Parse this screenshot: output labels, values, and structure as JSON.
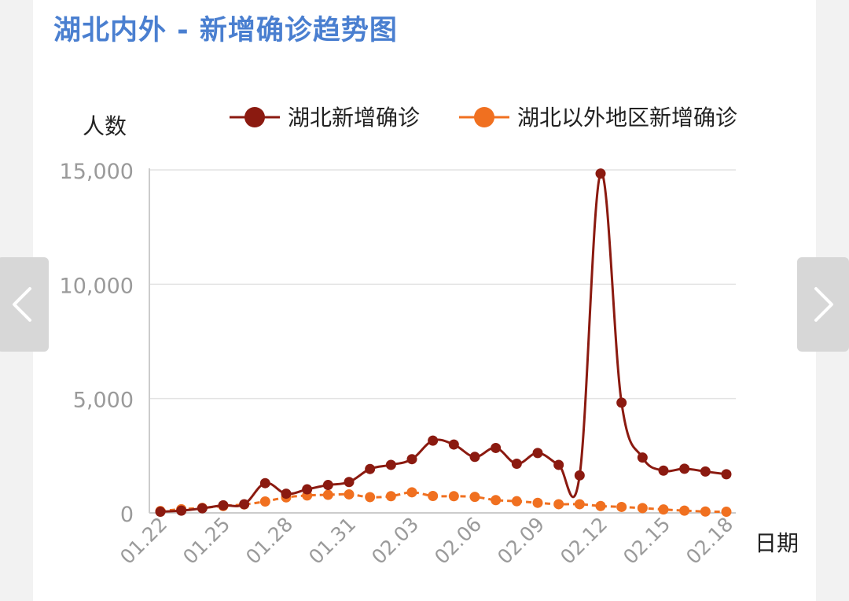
{
  "title": "湖北内外 - 新增确诊趋势图",
  "icons": {
    "prev": "chevron-left-icon",
    "next": "chevron-right-icon"
  },
  "chart_data": {
    "type": "line",
    "ylabel": "人数",
    "xlabel": "日期",
    "ylim": [
      0,
      15000
    ],
    "yticks": [
      0,
      5000,
      10000,
      15000
    ],
    "ytick_labels": [
      "0",
      "5,000",
      "10,000",
      "15,000"
    ],
    "grid": true,
    "legend": "top",
    "x": [
      "01.22",
      "01.23",
      "01.24",
      "01.25",
      "01.26",
      "01.27",
      "01.28",
      "01.29",
      "01.30",
      "01.31",
      "02.01",
      "02.02",
      "02.03",
      "02.04",
      "02.05",
      "02.06",
      "02.07",
      "02.08",
      "02.09",
      "02.10",
      "02.11",
      "02.12",
      "02.13",
      "02.14",
      "02.15",
      "02.16",
      "02.17",
      "02.18"
    ],
    "xtick_labels": [
      "01.22",
      "01.25",
      "01.28",
      "01.31",
      "02.03",
      "02.06",
      "02.09",
      "02.12",
      "02.15",
      "02.18"
    ],
    "series": [
      {
        "name": "湖北新增确诊",
        "color": "#8b1a10",
        "values": [
          50,
          100,
          200,
          330,
          380,
          1300,
          840,
          1030,
          1220,
          1350,
          1920,
          2100,
          2350,
          3160,
          2990,
          2450,
          2840,
          2150,
          2620,
          2100,
          1640,
          14840,
          4820,
          2420,
          1850,
          1930,
          1810,
          1690
        ]
      },
      {
        "name": "湖北以外地区新增确诊",
        "color": "#f07020",
        "values": [
          80,
          160,
          220,
          300,
          370,
          500,
          680,
          760,
          790,
          810,
          690,
          730,
          900,
          740,
          730,
          700,
          560,
          510,
          440,
          380,
          380,
          300,
          260,
          210,
          150,
          100,
          60,
          50
        ]
      }
    ]
  }
}
